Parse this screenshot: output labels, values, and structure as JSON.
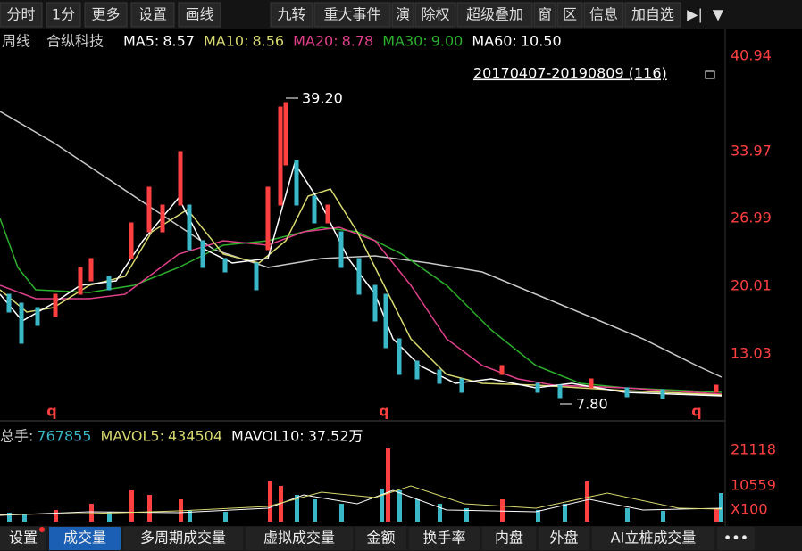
{
  "toolbar": [
    "分时",
    "1分",
    "更多",
    "设置",
    "画线",
    "九转",
    "重大事件",
    "演",
    "除权",
    "超级叠加",
    "窗",
    "区",
    "信息",
    "加自选"
  ],
  "info": {
    "period": "周线",
    "name": "合纵科技",
    "ma": [
      {
        "label": "MA5:",
        "value": "8.57"
      },
      {
        "label": "MA10:",
        "value": "8.56"
      },
      {
        "label": "MA20:",
        "value": "8.78"
      },
      {
        "label": "MA30:",
        "value": "9.00"
      },
      {
        "label": "MA60:",
        "value": "10.50"
      }
    ]
  },
  "range": "20170407-20190809 (116)",
  "price_axis": [
    "40.94",
    "33.97",
    "26.99",
    "20.01",
    "13.03"
  ],
  "annotations": {
    "high": "39.20",
    "low": "7.80",
    "markers": [
      "q",
      "q",
      "q"
    ]
  },
  "volume": {
    "items": [
      {
        "label": "总手:",
        "value": "767855"
      },
      {
        "label": "MAVOL5:",
        "value": "434504"
      },
      {
        "label": "MAVOL10:",
        "value": "37.52万"
      }
    ],
    "axis": [
      "21118",
      "10559",
      "X100"
    ]
  },
  "tabs": [
    "设置",
    "成交量",
    "多周期成交量",
    "虚拟成交量",
    "金额",
    "换手率",
    "内盘",
    "外盘",
    "AI立桩成交量",
    "•••"
  ]
}
